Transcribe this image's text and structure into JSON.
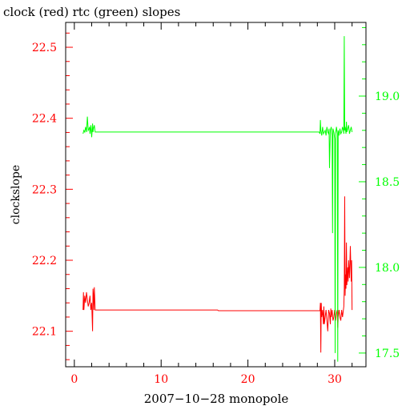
{
  "chart_data": {
    "type": "line",
    "title": "clock (red) rtc (green) slopes",
    "xlabel": "2007−10−28 monopole",
    "ylabel": "clockslope",
    "xlim": [
      -1,
      33.6
    ],
    "ylim_left": [
      22.05,
      22.535
    ],
    "ylim_right": [
      17.42,
      19.43
    ],
    "x_ticks": [
      0,
      10,
      20,
      30
    ],
    "y_left_ticks": [
      22.1,
      22.2,
      22.3,
      22.4,
      22.5
    ],
    "y_right_ticks": [
      17.5,
      18,
      18.5,
      19
    ],
    "colors": {
      "axes": "#000000",
      "left_axis": "#ff0000",
      "right_axis": "#00ff00"
    },
    "series": [
      {
        "axis": "left",
        "color": "#ff0000",
        "x": [
          1.0,
          1.05,
          1.1,
          1.2,
          1.3,
          1.4,
          1.5,
          1.6,
          1.7,
          1.8,
          1.9,
          2.0,
          2.05,
          2.1,
          2.15,
          2.2,
          2.25,
          2.3,
          2.4,
          16.5,
          16.6,
          28.3,
          28.35,
          28.4,
          28.45,
          28.5,
          28.6,
          28.7,
          28.75,
          28.8,
          28.9,
          29.0,
          29.1,
          29.2,
          29.3,
          29.4,
          29.5,
          29.55,
          29.6,
          29.7,
          29.8,
          29.9,
          30.0,
          30.05,
          30.1,
          30.2,
          30.3,
          30.35,
          30.4,
          30.5,
          30.6,
          30.7,
          30.8,
          30.9,
          31.0,
          31.05,
          31.1,
          31.15,
          31.2,
          31.25,
          31.3,
          31.35,
          31.4,
          31.5,
          31.55,
          31.6,
          31.7,
          31.8,
          31.9,
          31.95,
          32.0
        ],
        "y": [
          22.13,
          22.155,
          22.13,
          22.15,
          22.14,
          22.155,
          22.145,
          22.135,
          22.14,
          22.15,
          22.13,
          22.14,
          22.12,
          22.1,
          22.16,
          22.15,
          22.13,
          22.162,
          22.13,
          22.13,
          22.129,
          22.129,
          22.14,
          22.07,
          22.14,
          22.12,
          22.13,
          22.11,
          22.135,
          22.11,
          22.12,
          22.13,
          22.115,
          22.1,
          22.13,
          22.125,
          22.11,
          22.132,
          22.12,
          22.13,
          22.115,
          22.12,
          22.13,
          22.12,
          22.115,
          22.125,
          22.13,
          22.105,
          22.12,
          22.13,
          22.12,
          22.115,
          22.13,
          22.12,
          22.13,
          22.135,
          22.16,
          22.29,
          22.15,
          22.18,
          22.16,
          22.225,
          22.165,
          22.19,
          22.17,
          22.2,
          22.175,
          22.22,
          22.17,
          22.2,
          22.13
        ]
      },
      {
        "axis": "right",
        "color": "#00ff00",
        "x": [
          1.0,
          1.1,
          1.2,
          1.3,
          1.4,
          1.5,
          1.6,
          1.7,
          1.75,
          1.8,
          1.9,
          2.0,
          2.05,
          2.1,
          2.15,
          2.2,
          2.3,
          2.4,
          16.5,
          28.2,
          28.3,
          28.35,
          28.4,
          28.5,
          28.6,
          28.7,
          28.8,
          28.9,
          29.0,
          29.1,
          29.2,
          29.3,
          29.35,
          29.4,
          29.5,
          29.6,
          29.7,
          29.75,
          29.8,
          29.9,
          30.0,
          30.05,
          30.1,
          30.2,
          30.3,
          30.35,
          30.4,
          30.5,
          30.6,
          30.7,
          30.8,
          30.9,
          31.0,
          31.05,
          31.1,
          31.15,
          31.2,
          31.3,
          31.35,
          31.4,
          31.5,
          31.6,
          31.7,
          31.8,
          31.9,
          32.0
        ],
        "y": [
          18.78,
          18.8,
          18.79,
          18.82,
          18.79,
          18.88,
          18.8,
          18.81,
          18.82,
          18.78,
          18.83,
          18.76,
          18.8,
          18.84,
          18.79,
          18.81,
          18.83,
          18.79,
          18.79,
          18.79,
          18.78,
          18.86,
          18.8,
          18.77,
          18.82,
          18.78,
          18.79,
          18.8,
          18.77,
          18.82,
          18.79,
          18.78,
          18.81,
          18.58,
          18.8,
          18.82,
          18.77,
          18.2,
          18.81,
          18.79,
          18.75,
          17.5,
          18.78,
          18.82,
          18.78,
          17.45,
          18.8,
          18.77,
          18.81,
          18.78,
          18.79,
          18.82,
          18.8,
          18.78,
          19.35,
          18.8,
          18.82,
          18.78,
          18.85,
          18.79,
          18.81,
          18.83,
          18.78,
          18.8,
          18.82,
          18.79
        ]
      }
    ]
  }
}
